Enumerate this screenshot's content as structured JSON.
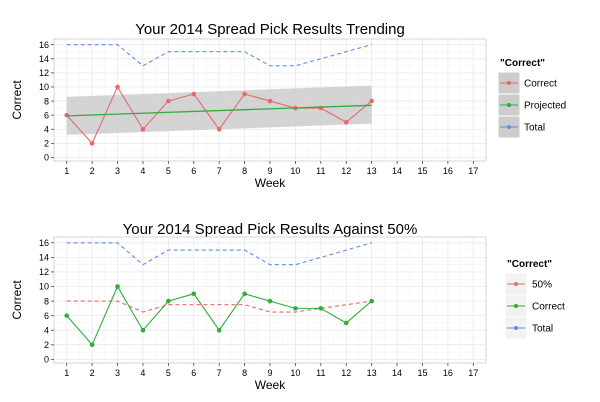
{
  "chart_data": [
    {
      "type": "line",
      "title": "Your 2014 Spread Pick Results Trending",
      "xlabel": "Week",
      "ylabel": "Correct",
      "x_ticks": [
        1,
        2,
        3,
        4,
        5,
        6,
        7,
        8,
        9,
        10,
        11,
        12,
        13,
        14,
        15,
        16,
        17
      ],
      "y_ticks": [
        0,
        2,
        4,
        6,
        8,
        10,
        12,
        14,
        16
      ],
      "xlim": [
        0.5,
        17.5
      ],
      "ylim": [
        -0.5,
        16.8
      ],
      "grid": true,
      "legend_title": "\"Correct\"",
      "legend_position": "right",
      "series": [
        {
          "name": "Correct",
          "color": "#E8696A",
          "style": "solid-points",
          "x": [
            1,
            2,
            3,
            4,
            5,
            6,
            7,
            8,
            9,
            10,
            11,
            12,
            13
          ],
          "values": [
            6,
            2,
            10,
            4,
            8,
            9,
            4,
            9,
            8,
            7,
            7,
            5,
            8
          ]
        },
        {
          "name": "Projected",
          "color": "#2EAD3C",
          "style": "trend-line",
          "x": [
            1,
            13
          ],
          "values": [
            5.9,
            7.4
          ],
          "band_lower": [
            3.2,
            4.8
          ],
          "band_upper": [
            8.6,
            10.2
          ]
        },
        {
          "name": "Total",
          "color": "#5E8FE6",
          "style": "dashed",
          "x": [
            1,
            2,
            3,
            4,
            5,
            6,
            7,
            8,
            9,
            10,
            11,
            12,
            13
          ],
          "values": [
            16,
            16,
            16,
            13,
            15,
            15,
            15,
            15,
            13,
            13,
            14,
            15,
            16
          ]
        }
      ]
    },
    {
      "type": "line",
      "title": "Your 2014 Spread Pick Results Against 50%",
      "xlabel": "Week",
      "ylabel": "Correct",
      "x_ticks": [
        1,
        2,
        3,
        4,
        5,
        6,
        7,
        8,
        9,
        10,
        11,
        12,
        13,
        14,
        15,
        16,
        17
      ],
      "y_ticks": [
        0,
        2,
        4,
        6,
        8,
        10,
        12,
        14,
        16
      ],
      "xlim": [
        0.5,
        17.5
      ],
      "ylim": [
        -0.5,
        16.8
      ],
      "grid": true,
      "legend_title": "\"Correct\"",
      "legend_position": "right",
      "series": [
        {
          "name": "50%",
          "color": "#E8696A",
          "style": "dashed",
          "x": [
            1,
            2,
            3,
            4,
            5,
            6,
            7,
            8,
            9,
            10,
            11,
            12,
            13
          ],
          "values": [
            8,
            8,
            8,
            6.5,
            7.5,
            7.5,
            7.5,
            7.5,
            6.5,
            6.5,
            7,
            7.5,
            8
          ]
        },
        {
          "name": "Correct",
          "color": "#2EAD3C",
          "style": "solid-points",
          "x": [
            1,
            2,
            3,
            4,
            5,
            6,
            7,
            8,
            9,
            10,
            11,
            12,
            13
          ],
          "values": [
            6,
            2,
            10,
            4,
            8,
            9,
            4,
            9,
            8,
            7,
            7,
            5,
            8
          ]
        },
        {
          "name": "Total",
          "color": "#5E8FE6",
          "style": "dashed",
          "x": [
            1,
            2,
            3,
            4,
            5,
            6,
            7,
            8,
            9,
            10,
            11,
            12,
            13
          ],
          "values": [
            16,
            16,
            16,
            13,
            15,
            15,
            15,
            15,
            13,
            13,
            14,
            15,
            16
          ]
        }
      ]
    }
  ]
}
